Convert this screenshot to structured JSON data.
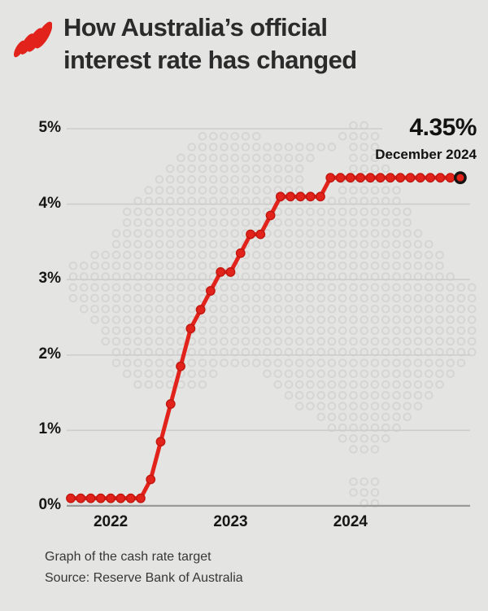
{
  "header": {
    "logo": "sbs-logo",
    "title_line1": "How Australia’s official",
    "title_line2": "interest rate has changed"
  },
  "annotation": {
    "value": "4.35%",
    "date": "December 2024"
  },
  "footer": {
    "line1": "Graph of the cash rate target",
    "line2": "Source: Reserve Bank of Australia"
  },
  "colors": {
    "background": "#e4e4e3",
    "line": "#e2231b",
    "line_dark": "#c0170f",
    "marker_ring": "#141414",
    "grid": "#cdcdcd",
    "axis": "#9a9a9a",
    "map_dot": "#d5d5d4",
    "text": "#2b2b2b"
  },
  "chart_data": {
    "type": "line",
    "title": "How Australia’s official interest rate has changed",
    "series_name": "Cash rate target",
    "unit": "%",
    "ylim": [
      0,
      5
    ],
    "grid": true,
    "legend_position": "none",
    "x": [
      "Sep 2021",
      "Oct 2021",
      "Nov 2021",
      "Dec 2021",
      "Jan 2022",
      "Feb 2022",
      "Mar 2022",
      "Apr 2022",
      "May 2022",
      "Jun 2022",
      "Jul 2022",
      "Aug 2022",
      "Sep 2022",
      "Oct 2022",
      "Nov 2022",
      "Dec 2022",
      "Jan 2023",
      "Feb 2023",
      "Mar 2023",
      "Apr 2023",
      "May 2023",
      "Jun 2023",
      "Jul 2023",
      "Aug 2023",
      "Sep 2023",
      "Oct 2023",
      "Nov 2023",
      "Dec 2023",
      "Jan 2024",
      "Feb 2024",
      "Mar 2024",
      "Apr 2024",
      "May 2024",
      "Jun 2024",
      "Jul 2024",
      "Aug 2024",
      "Sep 2024",
      "Oct 2024",
      "Nov 2024",
      "Dec 2024"
    ],
    "values": [
      0.1,
      0.1,
      0.1,
      0.1,
      0.1,
      0.1,
      0.1,
      0.1,
      0.35,
      0.85,
      1.35,
      1.85,
      2.35,
      2.6,
      2.85,
      3.1,
      3.1,
      3.35,
      3.6,
      3.6,
      3.85,
      4.1,
      4.1,
      4.1,
      4.1,
      4.1,
      4.35,
      4.35,
      4.35,
      4.35,
      4.35,
      4.35,
      4.35,
      4.35,
      4.35,
      4.35,
      4.35,
      4.35,
      4.35,
      4.35
    ],
    "yticks": [
      "0%",
      "1%",
      "2%",
      "3%",
      "4%",
      "5%"
    ],
    "xticks": [
      {
        "label": "2022",
        "month": "Jan 2022"
      },
      {
        "label": "2023",
        "month": "Jan 2023"
      },
      {
        "label": "2024",
        "month": "Jan 2024"
      }
    ],
    "last_point": {
      "value": 4.35,
      "label": "4.35%",
      "date": "December 2024"
    }
  }
}
